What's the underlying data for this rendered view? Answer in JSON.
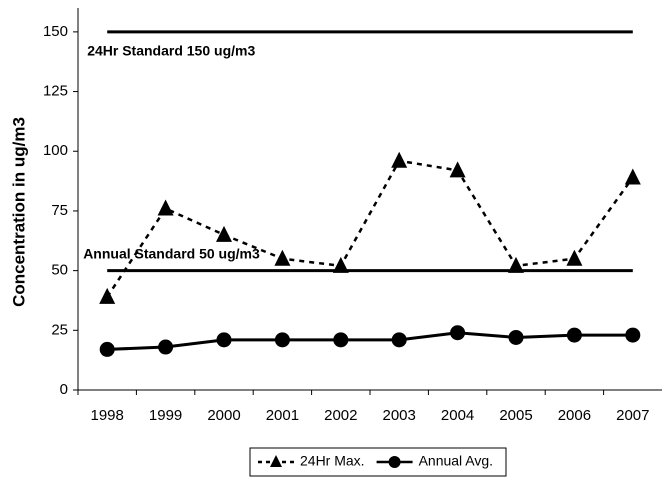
{
  "chart_data": {
    "type": "line",
    "y_label": "Concentration in ug/m3",
    "categories": [
      "1998",
      "1999",
      "2000",
      "2001",
      "2002",
      "2003",
      "2004",
      "2005",
      "2006",
      "2007"
    ],
    "series": [
      {
        "name": "24Hr Max.",
        "color": "#000000",
        "dash": true,
        "marker": "triangle",
        "values": [
          39,
          76,
          65,
          55,
          52,
          96,
          92,
          52,
          55,
          89
        ]
      },
      {
        "name": "Annual Avg.",
        "color": "#000000",
        "dash": false,
        "marker": "circle",
        "values": [
          17,
          18,
          21,
          21,
          21,
          21,
          24,
          22,
          23,
          23
        ]
      }
    ],
    "reference_lines": [
      {
        "label": "24Hr Standard 150 ug/m3",
        "value": 150
      },
      {
        "label": "Annual Standard 50 ug/m3",
        "value": 50
      }
    ],
    "ylim": [
      0,
      160
    ],
    "yticks": [
      0,
      25,
      50,
      75,
      100,
      125,
      150
    ],
    "legend": "bottom"
  }
}
